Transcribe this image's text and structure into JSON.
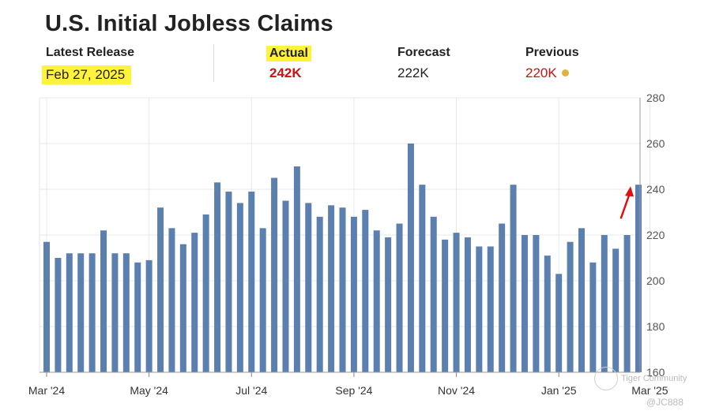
{
  "header": {
    "title": "U.S. Initial Jobless Claims",
    "latest_release_label": "Latest Release",
    "latest_release_value": "Feb 27, 2025",
    "actual_label": "Actual",
    "actual_value": "242K",
    "forecast_label": "Forecast",
    "forecast_value": "222K",
    "previous_label": "Previous",
    "previous_value": "220K"
  },
  "colors": {
    "bar": "#5b7fae",
    "actual": "#d01010",
    "highlight": "#fff23a",
    "previous_dot": "#e2b13c",
    "arrow": "#e01010"
  },
  "watermark": {
    "brand": "Tiger Community",
    "handle": "@JC888"
  },
  "chart_data": {
    "type": "bar",
    "title": "U.S. Initial Jobless Claims",
    "xlabel": "",
    "ylabel": "",
    "ylim": [
      160,
      280
    ],
    "yticks": [
      160,
      180,
      200,
      220,
      240,
      260,
      280
    ],
    "y_axis_position": "right",
    "grid": true,
    "x_tick_labels": [
      {
        "label": "Mar '24",
        "index": 0
      },
      {
        "label": "May '24",
        "index": 9
      },
      {
        "label": "Jul '24",
        "index": 18
      },
      {
        "label": "Sep '24",
        "index": 27
      },
      {
        "label": "Nov '24",
        "index": 36
      },
      {
        "label": "Jan '25",
        "index": 45
      },
      {
        "label": "Mar '25",
        "index": 53
      }
    ],
    "values": [
      217,
      210,
      212,
      212,
      212,
      222,
      212,
      212,
      208,
      209,
      232,
      223,
      216,
      221,
      229,
      243,
      239,
      234,
      239,
      223,
      245,
      235,
      250,
      234,
      228,
      233,
      232,
      228,
      231,
      222,
      219,
      225,
      260,
      242,
      228,
      218,
      221,
      219,
      215,
      215,
      225,
      242,
      220,
      220,
      211,
      203,
      217,
      223,
      208,
      220,
      214,
      220,
      242
    ],
    "annotations": [
      {
        "type": "arrow",
        "target_index": 52
      }
    ]
  }
}
